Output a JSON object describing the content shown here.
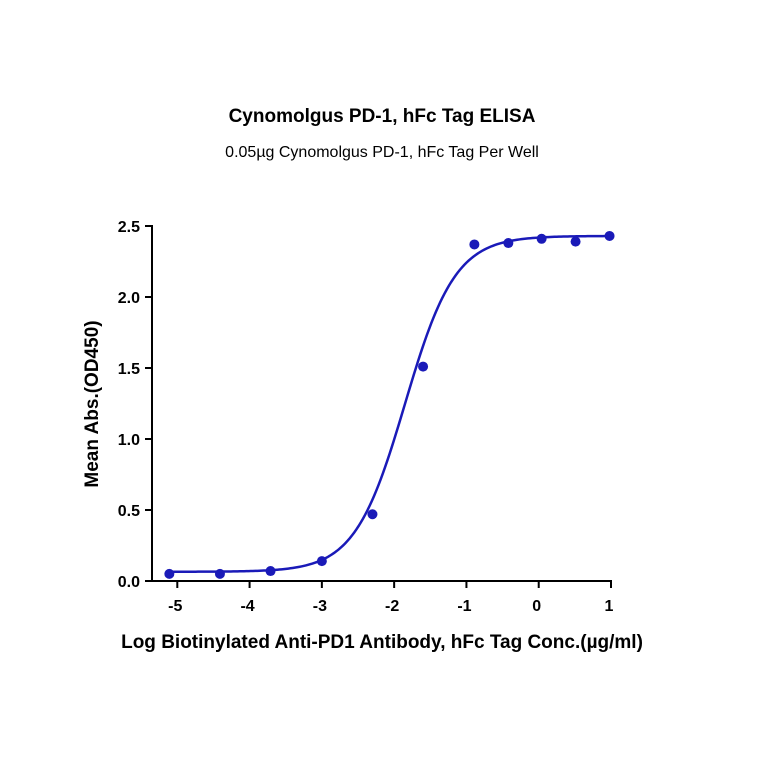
{
  "chart_data": {
    "type": "scatter",
    "title": "Cynomolgus PD-1, hFc Tag ELISA",
    "subtitle": "0.05µg Cynomolgus PD-1, hFc Tag Per Well",
    "xlabel": "Log Biotinylated Anti-PD1 Antibody, hFc Tag Conc.(µg/ml)",
    "ylabel": "Mean Abs.(OD450)",
    "xlim": [
      -5.35,
      1.0
    ],
    "ylim": [
      0,
      2.5
    ],
    "x_ticks": [
      -5,
      -4,
      -3,
      -2,
      -1,
      0,
      1
    ],
    "x_tick_labels": [
      "-5",
      "-4",
      "-3",
      "-2",
      "-1",
      "0",
      "1"
    ],
    "y_ticks": [
      0.0,
      0.5,
      1.0,
      1.5,
      2.0,
      2.5
    ],
    "y_tick_labels": [
      "0.0",
      "0.5",
      "1.0",
      "1.5",
      "2.0",
      "2.5"
    ],
    "grid": false,
    "series": [
      {
        "points": [
          {
            "x": -5.11,
            "y": 0.05
          },
          {
            "x": -4.41,
            "y": 0.05
          },
          {
            "x": -3.71,
            "y": 0.07
          },
          {
            "x": -3.0,
            "y": 0.14
          },
          {
            "x": -2.3,
            "y": 0.47
          },
          {
            "x": -1.6,
            "y": 1.51
          },
          {
            "x": -0.89,
            "y": 2.37
          },
          {
            "x": -0.42,
            "y": 2.38
          },
          {
            "x": 0.04,
            "y": 2.41
          },
          {
            "x": 0.51,
            "y": 2.39
          },
          {
            "x": 0.98,
            "y": 2.43
          }
        ],
        "fit": {
          "model": "4PL",
          "bottom": 0.065,
          "top": 2.43,
          "logEC50": -1.85,
          "hill": 1.25
        }
      }
    ],
    "color": "#1a1ab8"
  }
}
